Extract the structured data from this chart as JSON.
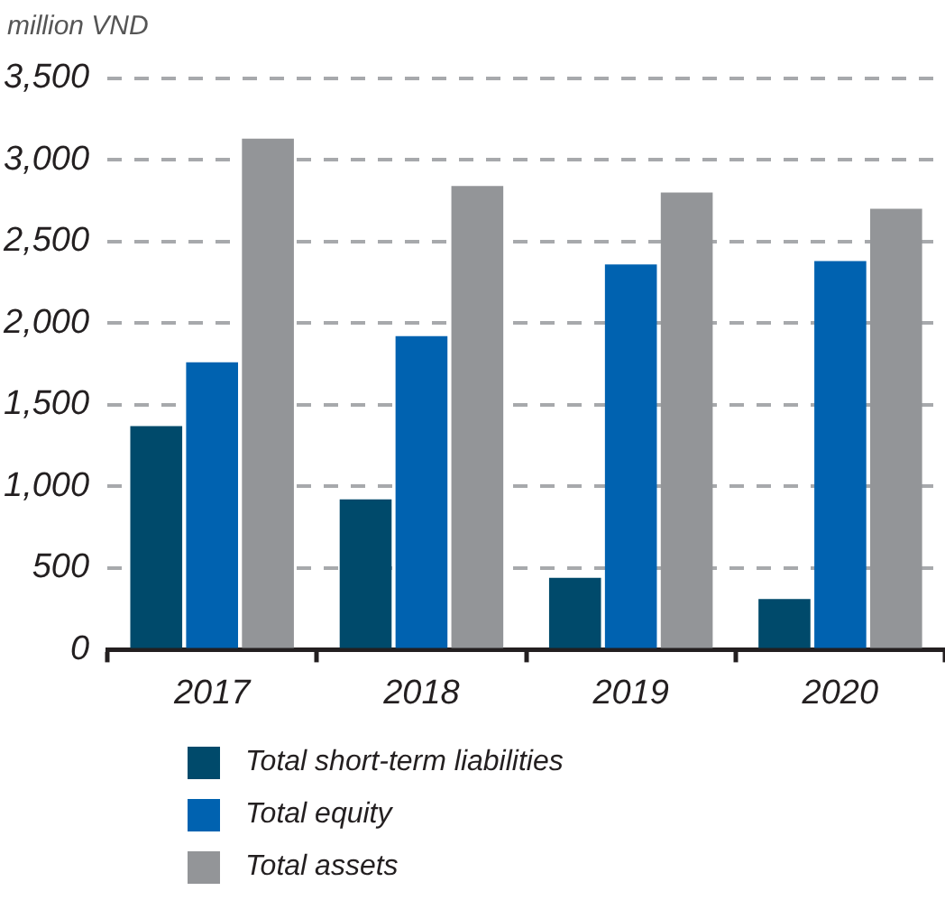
{
  "chart_data": {
    "type": "bar",
    "ylabel": "million VND",
    "categories": [
      "2017",
      "2018",
      "2019",
      "2020"
    ],
    "series": [
      {
        "name": "Total short-term liabilities",
        "color": "#004a6b",
        "values": [
          1370,
          920,
          440,
          310
        ]
      },
      {
        "name": "Total equity",
        "color": "#0062b0",
        "values": [
          1760,
          1920,
          2360,
          2380
        ]
      },
      {
        "name": "Total assets",
        "color": "#939598",
        "values": [
          3130,
          2840,
          2800,
          2700
        ]
      }
    ],
    "ylim": [
      0,
      3500
    ],
    "yticks": [
      {
        "value": 0,
        "label": "0"
      },
      {
        "value": 500,
        "label": "500"
      },
      {
        "value": 1000,
        "label": "1,000"
      },
      {
        "value": 1500,
        "label": "1,500"
      },
      {
        "value": 2000,
        "label": "2,000"
      },
      {
        "value": 2500,
        "label": "2,500"
      },
      {
        "value": 3000,
        "label": "3,000"
      },
      {
        "value": 3500,
        "label": "3,500"
      }
    ],
    "grid": "y",
    "legend": "bottom"
  }
}
